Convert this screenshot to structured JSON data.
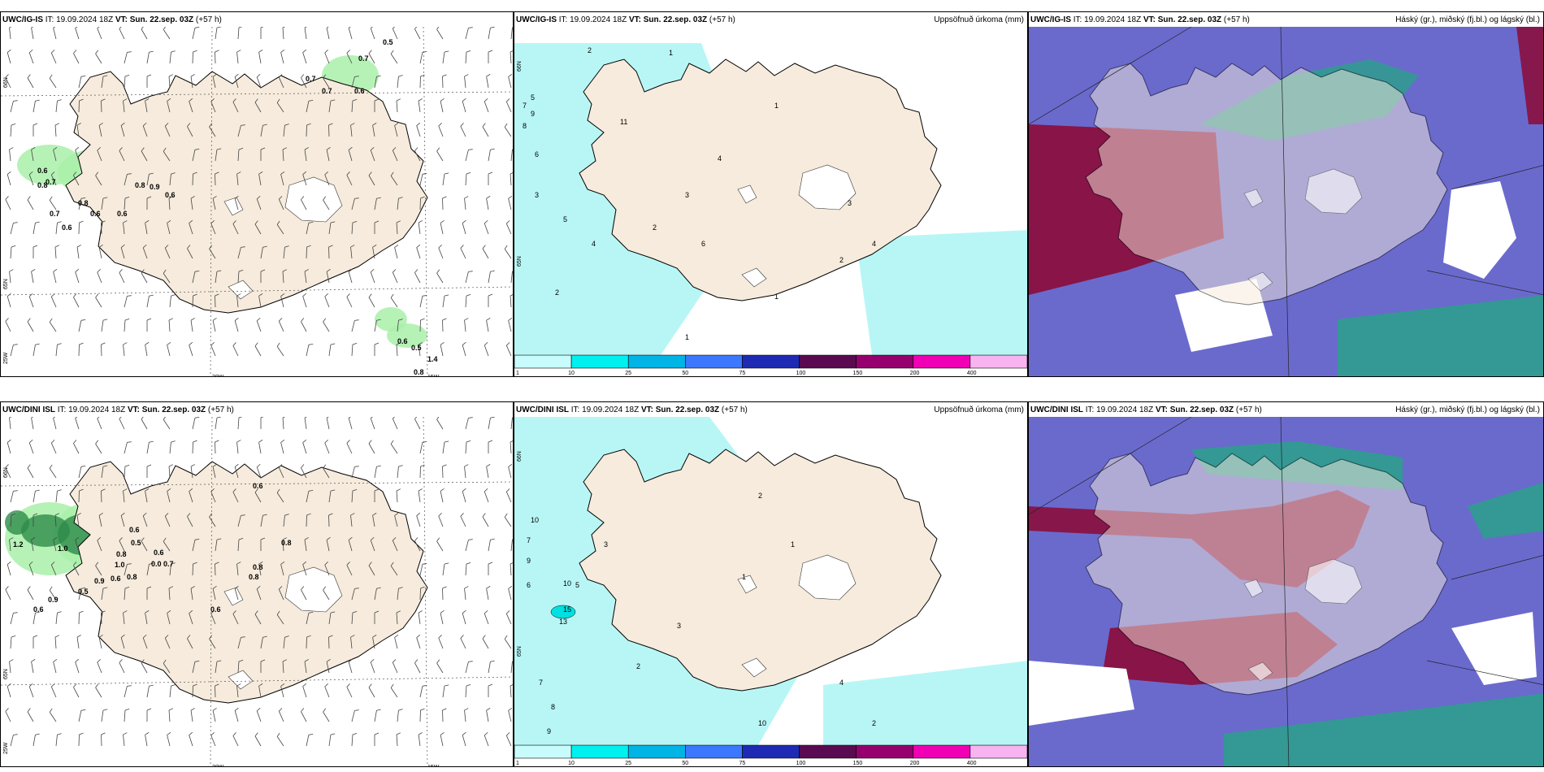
{
  "panels": [
    {
      "model": "UWC/IG-IS",
      "issue_label": "IT:",
      "issue_time": "19.09.2024 18Z",
      "valid_label": "VT:",
      "valid_time": "Sun. 22.sep. 03Z",
      "lead": "(+57 h)",
      "title_right": "",
      "labels": [
        "0.5",
        "0.7",
        "0.7",
        "0.7",
        "0.6",
        "0.6",
        "0.8",
        "0.7",
        "0.8",
        "0.9",
        "0.6",
        "0.8",
        "0.7",
        "0.6",
        "0.6",
        "0.6",
        "0.6",
        "0.5",
        "1.4",
        "0.8"
      ],
      "axis": [
        "66N",
        "65N",
        "20W",
        "15W",
        "25W"
      ]
    },
    {
      "model": "UWC/IG-IS",
      "issue_label": "IT:",
      "issue_time": "19.09.2024 18Z",
      "valid_label": "VT:",
      "valid_time": "Sun. 22.sep. 03Z",
      "lead": "(+57 h)",
      "title_right": "Uppsöfnuð úrkoma (mm)",
      "labels": [
        "2",
        "1",
        "5",
        "7",
        "8",
        "9",
        "6",
        "3",
        "11",
        "4",
        "2",
        "1",
        "3",
        "5",
        "4",
        "6",
        "2",
        "1",
        "1",
        "2",
        "3",
        "4"
      ],
      "axis": [
        "66N",
        "65N"
      ]
    },
    {
      "model": "UWC/IG-IS",
      "issue_label": "IT:",
      "issue_time": "19.09.2024 18Z",
      "valid_label": "VT:",
      "valid_time": "Sun. 22.sep. 03Z",
      "lead": "(+57 h)",
      "title_right": "Háský (gr.), miðský (fj.bl.) og lágský (bl.)"
    },
    {
      "model": "UWC/DINI ISL",
      "issue_label": "IT:",
      "issue_time": "19.09.2024 18Z",
      "valid_label": "VT:",
      "valid_time": "Sun. 22.sep. 03Z",
      "lead": "(+57 h)",
      "title_right": "",
      "labels": [
        "0.6",
        "0.6",
        "0.5",
        "1.2",
        "1.0",
        "0.8",
        "0.6",
        "0.0",
        "0.7",
        "0.8",
        "1.0",
        "0.8",
        "0.9",
        "0.6",
        "0.5",
        "0.9",
        "0.6",
        "0.8",
        "0.8",
        "0.6"
      ],
      "axis": [
        "66N",
        "65N",
        "20W",
        "15W",
        "25W"
      ]
    },
    {
      "model": "UWC/DINI ISL",
      "issue_label": "IT:",
      "issue_time": "19.09.2024 18Z",
      "valid_label": "VT:",
      "valid_time": "Sun. 22.sep. 03Z",
      "lead": "(+57 h)",
      "title_right": "Uppsöfnuð úrkoma (mm)",
      "labels": [
        "10",
        "7",
        "9",
        "6",
        "5",
        "15",
        "13",
        "10",
        "3",
        "2",
        "1",
        "7",
        "8",
        "9",
        "2",
        "3",
        "1",
        "4",
        "2",
        "10"
      ],
      "axis": [
        "66N",
        "65N"
      ]
    },
    {
      "model": "UWC/DINI ISL",
      "issue_label": "IT:",
      "issue_time": "19.09.2024 18Z",
      "valid_label": "VT:",
      "valid_time": "Sun. 22.sep. 03Z",
      "lead": "(+57 h)",
      "title_right": "Háský (gr.), miðský (fj.bl.) og lágský (bl.)"
    }
  ],
  "colorbar": {
    "ticks": [
      "1",
      "10",
      "25",
      "50",
      "75",
      "100",
      "150",
      "200",
      "400"
    ],
    "colors": [
      "#c8fcfc",
      "#00f0f0",
      "#00b4e6",
      "#3c78ff",
      "#1e2ab4",
      "#5a0a50",
      "#96006e",
      "#f000b4",
      "#f8b4f0"
    ]
  },
  "colors": {
    "land": "#f6ebdc",
    "sea_precip": "#b8f6f6",
    "green_precip": "#a9f0a9",
    "dark_green": "#2e8b4a",
    "high_cloud": "#8a1040",
    "mid_cloud": "#5a5ac8",
    "low_cloud": "#2aa08a"
  }
}
